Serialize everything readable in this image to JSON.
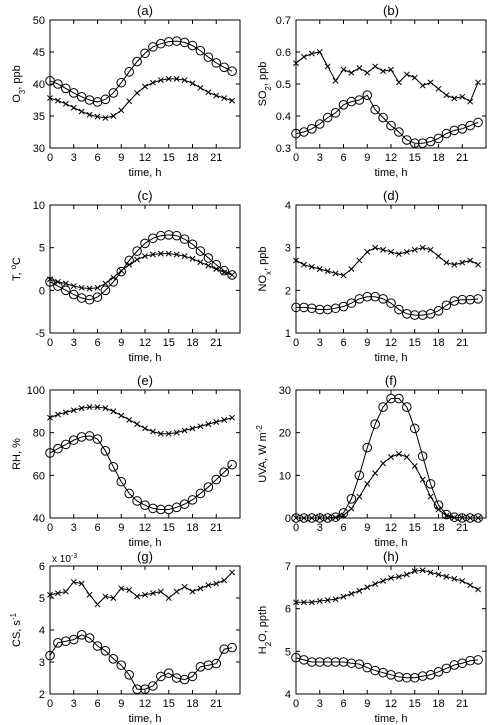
{
  "chart_data": [
    {
      "type": "line",
      "panel_label": "(a)",
      "xlabel": "time, h",
      "ylabel": "O3, ppb",
      "ylabel_parts": [
        {
          "t": "O"
        },
        {
          "t": "3",
          "sub": true
        },
        {
          "t": ", ppb"
        }
      ],
      "xlim": [
        0,
        24
      ],
      "ylim": [
        30,
        50
      ],
      "xticks": [
        0,
        3,
        6,
        9,
        12,
        15,
        18,
        21
      ],
      "yticks": [
        30,
        35,
        40,
        45,
        50
      ],
      "x": [
        0,
        1,
        2,
        3,
        4,
        5,
        6,
        7,
        8,
        9,
        10,
        11,
        12,
        13,
        14,
        15,
        16,
        17,
        18,
        19,
        20,
        21,
        22,
        23
      ],
      "series": [
        {
          "marker": "circle",
          "values": [
            40.5,
            40.0,
            39.3,
            38.6,
            38.0,
            37.5,
            37.2,
            37.6,
            38.6,
            40.2,
            41.9,
            43.5,
            44.8,
            45.8,
            46.3,
            46.6,
            46.7,
            46.5,
            46.0,
            45.2,
            44.2,
            43.3,
            42.6,
            42.0
          ]
        },
        {
          "marker": "x",
          "values": [
            37.8,
            37.4,
            36.9,
            36.3,
            35.7,
            35.2,
            34.9,
            34.7,
            35.0,
            35.9,
            37.3,
            38.6,
            39.6,
            40.2,
            40.6,
            40.8,
            40.8,
            40.6,
            40.1,
            39.4,
            38.7,
            38.2,
            37.8,
            37.4
          ]
        }
      ]
    },
    {
      "type": "line",
      "panel_label": "(b)",
      "xlabel": "time, h",
      "ylabel": "SO2, ppb",
      "ylabel_parts": [
        {
          "t": "SO"
        },
        {
          "t": "2",
          "sub": true
        },
        {
          "t": ", ppb"
        }
      ],
      "xlim": [
        0,
        24
      ],
      "ylim": [
        0.3,
        0.7
      ],
      "xticks": [
        0,
        3,
        6,
        9,
        12,
        15,
        18,
        21
      ],
      "yticks": [
        0.3,
        0.4,
        0.5,
        0.6,
        0.7
      ],
      "x": [
        0,
        1,
        2,
        3,
        4,
        5,
        6,
        7,
        8,
        9,
        10,
        11,
        12,
        13,
        14,
        15,
        16,
        17,
        18,
        19,
        20,
        21,
        22,
        23
      ],
      "series": [
        {
          "marker": "circle",
          "values": [
            0.345,
            0.35,
            0.36,
            0.375,
            0.395,
            0.41,
            0.435,
            0.445,
            0.45,
            0.465,
            0.42,
            0.395,
            0.37,
            0.35,
            0.325,
            0.315,
            0.315,
            0.32,
            0.33,
            0.345,
            0.355,
            0.36,
            0.37,
            0.38
          ]
        },
        {
          "marker": "x",
          "values": [
            0.565,
            0.585,
            0.595,
            0.6,
            0.555,
            0.51,
            0.545,
            0.535,
            0.55,
            0.535,
            0.555,
            0.54,
            0.545,
            0.505,
            0.53,
            0.52,
            0.495,
            0.505,
            0.485,
            0.465,
            0.455,
            0.46,
            0.445,
            0.505
          ]
        }
      ]
    },
    {
      "type": "line",
      "panel_label": "(c)",
      "xlabel": "time, h",
      "ylabel": "T, ºC",
      "ylabel_parts": [
        {
          "t": "T, "
        },
        {
          "t": "o",
          "sup": true
        },
        {
          "t": "C"
        }
      ],
      "xlim": [
        0,
        24
      ],
      "ylim": [
        -5,
        10
      ],
      "xticks": [
        0,
        3,
        6,
        9,
        12,
        15,
        18,
        21
      ],
      "yticks": [
        -5,
        0,
        5,
        10
      ],
      "x": [
        0,
        1,
        2,
        3,
        4,
        5,
        6,
        7,
        8,
        9,
        10,
        11,
        12,
        13,
        14,
        15,
        16,
        17,
        18,
        19,
        20,
        21,
        22,
        23
      ],
      "series": [
        {
          "marker": "circle",
          "values": [
            1.0,
            0.5,
            0.0,
            -0.5,
            -0.9,
            -1.1,
            -0.8,
            0.0,
            1.0,
            2.2,
            3.5,
            4.6,
            5.5,
            6.1,
            6.4,
            6.5,
            6.4,
            6.0,
            5.4,
            4.6,
            3.8,
            3.0,
            2.3,
            1.8
          ]
        },
        {
          "marker": "x",
          "values": [
            1.3,
            1.0,
            0.8,
            0.5,
            0.3,
            0.2,
            0.3,
            0.8,
            1.5,
            2.3,
            3.0,
            3.6,
            4.0,
            4.2,
            4.3,
            4.3,
            4.2,
            4.0,
            3.7,
            3.3,
            2.9,
            2.5,
            2.1,
            1.8
          ]
        }
      ]
    },
    {
      "type": "line",
      "panel_label": "(d)",
      "xlabel": "time, h",
      "ylabel": "NOx, ppb",
      "ylabel_parts": [
        {
          "t": "NO"
        },
        {
          "t": "x",
          "sub": true
        },
        {
          "t": ", ppb"
        }
      ],
      "xlim": [
        0,
        24
      ],
      "ylim": [
        1,
        4
      ],
      "xticks": [
        0,
        3,
        6,
        9,
        12,
        15,
        18,
        21
      ],
      "yticks": [
        1,
        2,
        3,
        4
      ],
      "x": [
        0,
        1,
        2,
        3,
        4,
        5,
        6,
        7,
        8,
        9,
        10,
        11,
        12,
        13,
        14,
        15,
        16,
        17,
        18,
        19,
        20,
        21,
        22,
        23
      ],
      "series": [
        {
          "marker": "circle",
          "values": [
            1.6,
            1.6,
            1.58,
            1.55,
            1.55,
            1.58,
            1.62,
            1.7,
            1.8,
            1.85,
            1.85,
            1.8,
            1.7,
            1.55,
            1.45,
            1.42,
            1.42,
            1.45,
            1.52,
            1.65,
            1.75,
            1.78,
            1.78,
            1.8
          ]
        },
        {
          "marker": "x",
          "values": [
            2.7,
            2.6,
            2.55,
            2.5,
            2.45,
            2.4,
            2.35,
            2.5,
            2.7,
            2.9,
            3.0,
            2.95,
            2.9,
            2.85,
            2.9,
            2.95,
            3.0,
            2.95,
            2.8,
            2.65,
            2.6,
            2.65,
            2.7,
            2.6
          ]
        }
      ]
    },
    {
      "type": "line",
      "panel_label": "(e)",
      "xlabel": "time, h",
      "ylabel": "RH, %",
      "ylabel_parts": [
        {
          "t": "RH, %"
        }
      ],
      "xlim": [
        0,
        24
      ],
      "ylim": [
        40,
        100
      ],
      "xticks": [
        0,
        3,
        6,
        9,
        12,
        15,
        18,
        21
      ],
      "yticks": [
        40,
        60,
        80,
        100
      ],
      "x": [
        0,
        1,
        2,
        3,
        4,
        5,
        6,
        7,
        8,
        9,
        10,
        11,
        12,
        13,
        14,
        15,
        16,
        17,
        18,
        19,
        20,
        21,
        22,
        23
      ],
      "series": [
        {
          "marker": "circle",
          "values": [
            70.5,
            72.5,
            74.5,
            76.5,
            78,
            78.5,
            77,
            71.5,
            64,
            57,
            51.5,
            48,
            46,
            44.5,
            44,
            44,
            45,
            46.5,
            48.5,
            51.5,
            54.5,
            58,
            61.5,
            65
          ]
        },
        {
          "marker": "x",
          "values": [
            87,
            88.5,
            89.5,
            90.5,
            91.5,
            92,
            92,
            91.5,
            90,
            88,
            86,
            84,
            82,
            80.5,
            79.5,
            79.5,
            80,
            81,
            82,
            83,
            84,
            85,
            86,
            87
          ]
        }
      ]
    },
    {
      "type": "line",
      "panel_label": "(f)",
      "xlabel": "time, h",
      "ylabel": "UVA, W m-2",
      "ylabel_parts": [
        {
          "t": "UVA, W m"
        },
        {
          "t": "-2",
          "sup": true
        }
      ],
      "xlim": [
        0,
        24
      ],
      "ylim": [
        0,
        30
      ],
      "xticks": [
        0,
        3,
        6,
        9,
        12,
        15,
        18,
        21
      ],
      "yticks": [
        0,
        10,
        20,
        30
      ],
      "x": [
        0,
        1,
        2,
        3,
        4,
        5,
        6,
        7,
        8,
        9,
        10,
        11,
        12,
        13,
        14,
        15,
        16,
        17,
        18,
        19,
        20,
        21,
        22,
        23
      ],
      "series": [
        {
          "marker": "circle",
          "values": [
            0,
            0,
            0,
            0,
            0,
            0.2,
            1.2,
            4.5,
            10,
            16.5,
            22,
            26,
            28,
            28,
            26,
            21,
            14.5,
            8,
            3,
            0.8,
            0.2,
            0,
            0,
            0
          ]
        },
        {
          "marker": "x",
          "values": [
            0,
            0,
            0,
            0,
            0,
            0.1,
            0.6,
            2.2,
            5,
            8,
            10.5,
            12.8,
            14.3,
            15,
            14.3,
            12.2,
            9,
            5,
            2,
            0.5,
            0.1,
            0,
            0,
            0
          ]
        }
      ]
    },
    {
      "type": "line",
      "panel_label": "(g)",
      "xlabel": "time, h",
      "ylabel": "CS, s-1",
      "ylabel_parts": [
        {
          "t": "CS, s"
        },
        {
          "t": "-1",
          "sup": true
        }
      ],
      "scale_note_parts": [
        {
          "t": "x 10"
        },
        {
          "t": "-3",
          "sup": true
        }
      ],
      "xlim": [
        0,
        24
      ],
      "ylim": [
        2,
        6
      ],
      "xticks": [
        0,
        3,
        6,
        9,
        12,
        15,
        18,
        21
      ],
      "yticks": [
        2,
        3,
        4,
        5,
        6
      ],
      "x": [
        0,
        1,
        2,
        3,
        4,
        5,
        6,
        7,
        8,
        9,
        10,
        11,
        12,
        13,
        14,
        15,
        16,
        17,
        18,
        19,
        20,
        21,
        22,
        23
      ],
      "series": [
        {
          "marker": "circle",
          "values": [
            3.2,
            3.6,
            3.65,
            3.7,
            3.85,
            3.75,
            3.5,
            3.35,
            3.1,
            2.9,
            2.6,
            2.15,
            2.15,
            2.25,
            2.55,
            2.65,
            2.5,
            2.45,
            2.55,
            2.85,
            2.9,
            2.95,
            3.4,
            3.45
          ]
        },
        {
          "marker": "x",
          "values": [
            5.1,
            5.15,
            5.2,
            5.5,
            5.45,
            5.1,
            4.8,
            5.05,
            5.0,
            5.3,
            5.25,
            5.05,
            5.1,
            5.15,
            5.2,
            5.0,
            5.2,
            5.35,
            5.2,
            5.3,
            5.4,
            5.45,
            5.55,
            5.8
          ]
        }
      ]
    },
    {
      "type": "line",
      "panel_label": "(h)",
      "xlabel": "time, h",
      "ylabel": "H2O, ppth",
      "ylabel_parts": [
        {
          "t": "H"
        },
        {
          "t": "2",
          "sub": true
        },
        {
          "t": "O, ppth"
        }
      ],
      "xlim": [
        0,
        24
      ],
      "ylim": [
        4,
        7
      ],
      "xticks": [
        0,
        3,
        6,
        9,
        12,
        15,
        18,
        21
      ],
      "yticks": [
        4,
        5,
        6,
        7
      ],
      "x": [
        0,
        1,
        2,
        3,
        4,
        5,
        6,
        7,
        8,
        9,
        10,
        11,
        12,
        13,
        14,
        15,
        16,
        17,
        18,
        19,
        20,
        21,
        22,
        23
      ],
      "series": [
        {
          "marker": "circle",
          "values": [
            4.85,
            4.8,
            4.75,
            4.75,
            4.75,
            4.75,
            4.75,
            4.72,
            4.7,
            4.62,
            4.55,
            4.5,
            4.45,
            4.4,
            4.38,
            4.38,
            4.42,
            4.45,
            4.52,
            4.6,
            4.68,
            4.72,
            4.78,
            4.8
          ]
        },
        {
          "marker": "x",
          "values": [
            6.15,
            6.15,
            6.15,
            6.18,
            6.2,
            6.22,
            6.28,
            6.35,
            6.42,
            6.5,
            6.58,
            6.65,
            6.72,
            6.75,
            6.8,
            6.88,
            6.9,
            6.85,
            6.8,
            6.75,
            6.7,
            6.65,
            6.55,
            6.45
          ]
        }
      ]
    }
  ]
}
